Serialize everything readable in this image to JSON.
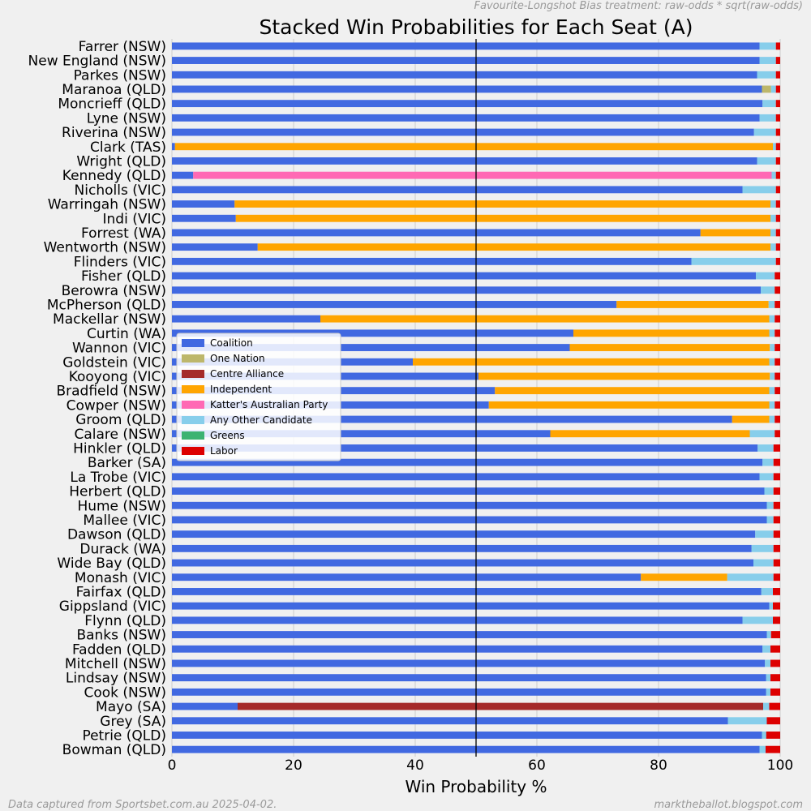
{
  "chart_data": {
    "type": "bar",
    "orientation": "horizontal",
    "stacked": true,
    "title": "Stacked Win Probabilities for Each Seat (A)",
    "xlabel": "Win Probability %",
    "ylabel": "",
    "xlim": [
      0,
      100
    ],
    "xticks": [
      "0",
      "20",
      "40",
      "60",
      "80",
      "100"
    ],
    "reference_line": 50,
    "grid": true,
    "legend_position": "center-left",
    "top_note": "Favourite-Longshot Bias treatment: raw-odds * sqrt(raw-odds)",
    "bottom_left_note": "Data captured from Sportsbet.com.au 2025-04-02.",
    "bottom_right_note": "marktheballot.blogspot.com",
    "series": [
      {
        "name": "Coalition",
        "color": "#4169e1"
      },
      {
        "name": "One Nation",
        "color": "#bdb76b"
      },
      {
        "name": "Centre Alliance",
        "color": "#a52a2a"
      },
      {
        "name": "Independent",
        "color": "#ffa500"
      },
      {
        "name": "Katter's Australian Party",
        "color": "#ff69b4"
      },
      {
        "name": "Any Other Candidate",
        "color": "#87ceeb"
      },
      {
        "name": "Greens",
        "color": "#3cb371"
      },
      {
        "name": "Labor",
        "color": "#dd0000"
      }
    ],
    "categories": [
      "Farrer (NSW)",
      "New England (NSW)",
      "Parkes (NSW)",
      "Maranoa (QLD)",
      "Moncrieff (QLD)",
      "Lyne (NSW)",
      "Riverina (NSW)",
      "Clark (TAS)",
      "Wright (QLD)",
      "Kennedy (QLD)",
      "Nicholls (VIC)",
      "Warringah (NSW)",
      "Indi (VIC)",
      "Forrest (WA)",
      "Wentworth (NSW)",
      "Flinders (VIC)",
      "Fisher (QLD)",
      "Berowra (NSW)",
      "McPherson (QLD)",
      "Mackellar  (NSW)",
      "Curtin (WA)",
      "Wannon (VIC)",
      "Goldstein (VIC)",
      "Kooyong (VIC)",
      "Bradfield (NSW)",
      "Cowper (NSW)",
      "Groom (QLD)",
      "Calare (NSW)",
      "Hinkler (QLD)",
      "Barker (SA)",
      "La Trobe (VIC)",
      "Herbert (QLD)",
      "Hume (NSW)",
      "Mallee (VIC)",
      "Dawson (QLD)",
      "Durack (WA)",
      "Wide Bay (QLD)",
      "Monash (VIC)",
      "Fairfax (QLD)",
      "Gippsland (VIC)",
      "Flynn (QLD)",
      "Banks (NSW)",
      "Fadden (QLD)",
      "Mitchell (NSW)",
      "Lindsay (NSW)",
      "Cook (NSW)",
      "Mayo (SA)",
      "Grey (SA)",
      "Petrie (QLD)",
      "Bowman (QLD)"
    ],
    "values": [
      [
        96.6,
        0,
        0,
        0,
        0,
        2.7,
        0,
        0.7
      ],
      [
        96.6,
        0,
        0,
        0,
        0,
        2.7,
        0,
        0.7
      ],
      [
        96.2,
        0,
        0,
        0,
        0,
        3.1,
        0,
        0.7
      ],
      [
        97.0,
        1.5,
        0,
        0,
        0,
        0.8,
        0,
        0.7
      ],
      [
        97.1,
        0,
        0,
        0,
        0,
        2.2,
        0,
        0.7
      ],
      [
        96.6,
        0,
        0,
        0,
        0,
        2.7,
        0,
        0.7
      ],
      [
        95.7,
        0,
        0,
        0,
        0,
        3.6,
        0,
        0.7
      ],
      [
        0.5,
        0,
        0,
        98.3,
        0,
        0.5,
        0,
        0.7
      ],
      [
        96.2,
        0,
        0,
        0,
        0,
        3.1,
        0,
        0.7
      ],
      [
        3.5,
        0,
        0,
        0,
        95.1,
        0.7,
        0,
        0.7
      ],
      [
        93.8,
        0,
        0,
        0,
        0,
        5.5,
        0,
        0.7
      ],
      [
        10.3,
        0,
        0,
        88.1,
        0,
        0.9,
        0,
        0.7
      ],
      [
        10.5,
        0,
        0,
        87.9,
        0,
        0.9,
        0,
        0.7
      ],
      [
        86.9,
        0,
        0,
        11.5,
        0,
        0.9,
        0,
        0.7
      ],
      [
        14.1,
        0,
        0,
        84.3,
        0,
        0.9,
        0,
        0.7
      ],
      [
        85.4,
        0,
        0,
        0,
        0,
        13.9,
        0,
        0.7
      ],
      [
        96.0,
        0,
        0,
        0,
        0,
        3.1,
        0,
        0.9
      ],
      [
        96.8,
        0,
        0,
        0,
        0,
        2.3,
        0,
        0.9
      ],
      [
        73.1,
        0,
        0,
        25.0,
        0,
        1.0,
        0,
        0.9
      ],
      [
        24.4,
        0,
        0,
        73.8,
        0,
        0.9,
        0,
        0.9
      ],
      [
        66.0,
        0,
        0,
        32.2,
        0,
        0.9,
        0,
        0.9
      ],
      [
        65.4,
        0,
        0,
        32.9,
        0,
        0.8,
        0,
        0.9
      ],
      [
        39.6,
        0,
        0,
        58.6,
        0,
        0.9,
        0,
        0.9
      ],
      [
        50.4,
        0,
        0,
        47.9,
        0,
        0.8,
        0,
        0.9
      ],
      [
        53.1,
        0,
        0,
        45.1,
        0,
        0.9,
        0,
        0.9
      ],
      [
        52.1,
        0,
        0,
        46.1,
        0,
        0.9,
        0,
        0.9
      ],
      [
        92.1,
        0,
        0,
        6.1,
        0,
        0.9,
        0,
        0.9
      ],
      [
        62.2,
        0,
        0,
        32.8,
        0,
        4.1,
        0,
        0.9
      ],
      [
        96.3,
        0,
        0,
        0,
        0,
        2.6,
        0,
        1.1
      ],
      [
        97.1,
        0,
        0,
        0,
        0,
        1.8,
        0,
        1.1
      ],
      [
        96.6,
        0,
        0,
        0,
        0,
        2.3,
        0,
        1.1
      ],
      [
        97.4,
        0,
        0,
        0,
        0,
        1.5,
        0,
        1.1
      ],
      [
        97.8,
        0,
        0,
        0,
        0,
        1.1,
        0,
        1.1
      ],
      [
        97.8,
        0,
        0,
        0,
        0,
        1.1,
        0,
        1.1
      ],
      [
        95.9,
        0,
        0,
        0,
        0,
        3.0,
        0,
        1.1
      ],
      [
        95.3,
        0,
        0,
        0,
        0,
        3.6,
        0,
        1.1
      ],
      [
        95.6,
        0,
        0,
        0,
        0,
        3.3,
        0,
        1.1
      ],
      [
        77.1,
        0,
        0,
        14.2,
        0,
        7.6,
        0,
        1.1
      ],
      [
        96.9,
        0,
        0,
        0,
        0,
        1.9,
        0,
        1.2
      ],
      [
        98.2,
        0,
        0,
        0,
        0,
        0.6,
        0,
        1.2
      ],
      [
        93.8,
        0,
        0,
        0,
        0,
        5.0,
        0,
        1.2
      ],
      [
        97.8,
        0,
        0,
        0,
        0,
        0.7,
        0,
        1.5
      ],
      [
        97.1,
        0,
        0,
        0,
        0,
        1.3,
        0,
        1.6
      ],
      [
        97.5,
        0,
        0,
        0,
        0,
        0.9,
        0,
        1.6
      ],
      [
        97.7,
        0,
        0,
        0,
        0,
        0.7,
        0,
        1.6
      ],
      [
        97.7,
        0,
        0,
        0,
        0,
        0.7,
        0,
        1.6
      ],
      [
        10.8,
        0,
        86.4,
        0,
        0,
        1.0,
        0,
        1.8
      ],
      [
        91.4,
        0,
        0,
        0,
        0,
        6.4,
        0,
        2.2
      ],
      [
        97.0,
        0,
        0,
        0,
        0,
        0.7,
        0,
        2.3
      ],
      [
        96.6,
        0,
        0,
        0,
        0,
        1.0,
        0,
        2.4
      ]
    ]
  }
}
